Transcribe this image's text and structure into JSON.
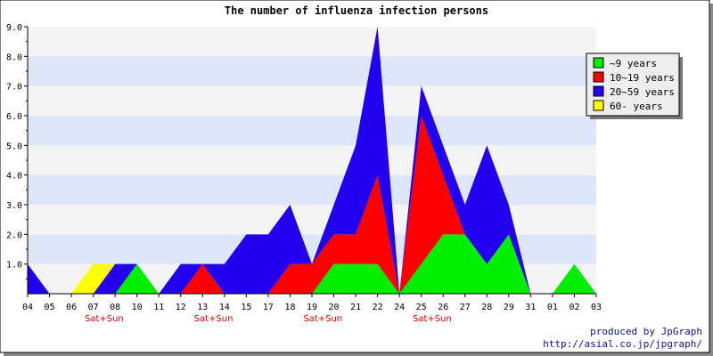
{
  "chart_data": {
    "type": "area",
    "stacked": true,
    "title": "The number of influenza infection persons",
    "xlabel": "",
    "ylabel": "",
    "ylim": [
      0,
      9
    ],
    "y_ticks": [
      "1.0",
      "2.0",
      "3.0",
      "4.0",
      "5.0",
      "6.0",
      "7.0",
      "8.0",
      "9.0"
    ],
    "categories": [
      "04",
      "05",
      "06",
      "07",
      "08",
      "10",
      "11",
      "12",
      "13",
      "14",
      "15",
      "17",
      "18",
      "19",
      "20",
      "21",
      "22",
      "24",
      "25",
      "26",
      "27",
      "28",
      "29",
      "31",
      "01",
      "02",
      "03"
    ],
    "weekend_markers": [
      {
        "index": 3.5,
        "label": "Sat+Sun"
      },
      {
        "index": 8.5,
        "label": "Sat+Sun"
      },
      {
        "index": 13.5,
        "label": "Sat+Sun"
      },
      {
        "index": 18.5,
        "label": "Sat+Sun"
      }
    ],
    "series": [
      {
        "name": "~9 years",
        "color": "#00ee00",
        "values": [
          0,
          0,
          0,
          0,
          0,
          1,
          0,
          0,
          0,
          0,
          0,
          0,
          0,
          0,
          1,
          1,
          1,
          0,
          1,
          2,
          2,
          1,
          2,
          0,
          0,
          1,
          0
        ]
      },
      {
        "name": "10~19 years",
        "color": "#ff0000",
        "values": [
          0,
          0,
          0,
          0,
          0,
          0,
          0,
          0,
          1,
          0,
          0,
          0,
          1,
          1,
          1,
          1,
          3,
          0,
          5,
          2,
          0,
          0,
          0,
          0,
          0,
          0,
          0
        ]
      },
      {
        "name": "20~59 years",
        "color": "#2200ee",
        "values": [
          1,
          0,
          0,
          0,
          1,
          0,
          0,
          1,
          0,
          1,
          2,
          2,
          2,
          0,
          1,
          3,
          5,
          0,
          1,
          1,
          1,
          4,
          1,
          0,
          0,
          0,
          0
        ]
      },
      {
        "name": "60- years",
        "color": "#ffff00",
        "values": [
          0,
          0,
          0,
          1,
          0,
          0,
          0,
          0,
          0,
          0,
          0,
          0,
          0,
          0,
          0,
          0,
          0,
          0,
          0,
          0,
          0,
          0,
          0,
          0,
          0,
          0,
          0
        ]
      }
    ],
    "grid": true,
    "legend_position": "top-right"
  },
  "credits": {
    "line1": "produced by JpGraph",
    "line2": "http://asial.co.jp/jpgraph/"
  }
}
